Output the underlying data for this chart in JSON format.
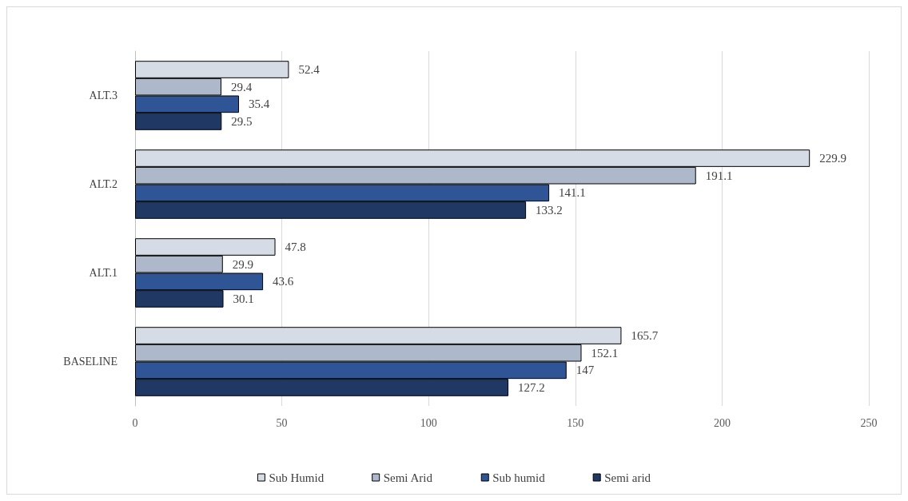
{
  "chart_data": {
    "type": "bar",
    "orientation": "horizontal",
    "categories": [
      "ALT.3",
      "ALT.2",
      "ALT.1",
      "BASELINE"
    ],
    "series": [
      {
        "name": "Sub Humid",
        "color": "#d6dce5",
        "values": [
          52.4,
          229.9,
          47.8,
          165.7
        ]
      },
      {
        "name": "Semi Arid",
        "color": "#adb9ca",
        "values": [
          29.4,
          191.1,
          29.9,
          152.1
        ]
      },
      {
        "name": "Sub humid",
        "color": "#2f5597",
        "values": [
          35.4,
          141.1,
          43.6,
          147
        ]
      },
      {
        "name": "Semi arid",
        "color": "#203864",
        "values": [
          29.5,
          133.2,
          30.1,
          127.2
        ]
      }
    ],
    "xlim": [
      0,
      250
    ],
    "xticks": [
      0,
      50,
      100,
      150,
      200,
      250
    ],
    "grid": "x",
    "legend": "bottom",
    "data_labels": true
  }
}
